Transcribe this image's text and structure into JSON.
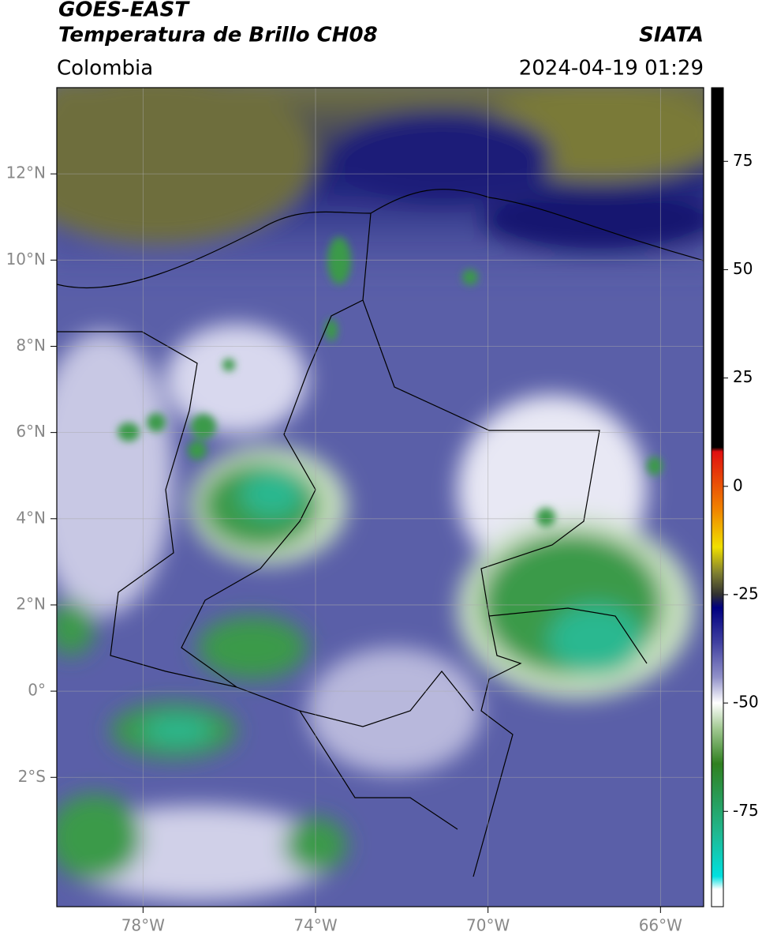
{
  "header": {
    "title": "GOES-EAST",
    "subtitle": "Temperatura de Brillo CH08",
    "source": "SIATA",
    "region": "Colombia",
    "timestamp": "2024-04-19 01:29"
  },
  "map": {
    "xlim": [
      -80,
      -65
    ],
    "ylim": [
      -5,
      14
    ],
    "xticks": [
      {
        "value": -78,
        "label": "78°W"
      },
      {
        "value": -74,
        "label": "74°W"
      },
      {
        "value": -70,
        "label": "70°W"
      },
      {
        "value": -66,
        "label": "66°W"
      }
    ],
    "yticks": [
      {
        "value": 12,
        "label": "12°N"
      },
      {
        "value": 10,
        "label": "10°N"
      },
      {
        "value": 8,
        "label": "8°N"
      },
      {
        "value": 6,
        "label": "6°N"
      },
      {
        "value": 4,
        "label": "4°N"
      },
      {
        "value": 2,
        "label": "2°N"
      },
      {
        "value": 0,
        "label": "0°"
      },
      {
        "value": -2,
        "label": "2°S"
      }
    ],
    "grid": true
  },
  "colorbar": {
    "clim": [
      -97,
      92
    ],
    "ticks": [
      75,
      50,
      25,
      0,
      -25,
      -50,
      -75
    ],
    "stops": [
      {
        "value": 92,
        "color": "#000000"
      },
      {
        "value": 9,
        "color": "#000000"
      },
      {
        "value": 8,
        "color": "#e01010"
      },
      {
        "value": -5,
        "color": "#f08000"
      },
      {
        "value": -14,
        "color": "#f0e000"
      },
      {
        "value": -20,
        "color": "#808030"
      },
      {
        "value": -25,
        "color": "#303030"
      },
      {
        "value": -28,
        "color": "#000080"
      },
      {
        "value": -36,
        "color": "#4040a0"
      },
      {
        "value": -44,
        "color": "#9090c8"
      },
      {
        "value": -50,
        "color": "#ffffff"
      },
      {
        "value": -56,
        "color": "#a0c890"
      },
      {
        "value": -64,
        "color": "#308020"
      },
      {
        "value": -80,
        "color": "#20b890"
      },
      {
        "value": -90,
        "color": "#00e0e0"
      },
      {
        "value": -93,
        "color": "#ffffff"
      }
    ]
  }
}
